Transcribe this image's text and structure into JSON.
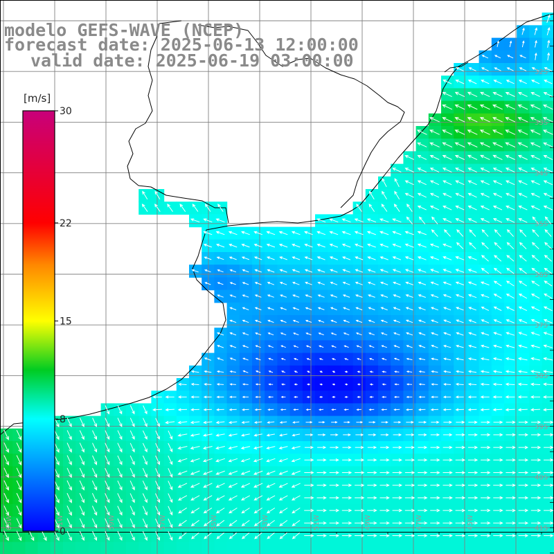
{
  "titles": {
    "model": "modelo GEFS-WAVE (NCEP)",
    "forecast": "forecast date: 2025-06-13 12:00:00",
    "valid": "valid date: 2025-06-19 03:00:00"
  },
  "colorbar": {
    "unit": "[m/s]",
    "ticks": [
      {
        "label": "30",
        "value": 30
      },
      {
        "label": "22",
        "value": 22
      },
      {
        "label": "15",
        "value": 15
      },
      {
        "label": "8",
        "value": 8
      },
      {
        "label": "0",
        "value": 0
      }
    ],
    "stops": [
      {
        "value": 0,
        "color": "#0000ff"
      },
      {
        "value": 8,
        "color": "#00ffff"
      },
      {
        "value": 11.5,
        "color": "#00cc22"
      },
      {
        "value": 15,
        "color": "#ffff00"
      },
      {
        "value": 19,
        "color": "#ff8800"
      },
      {
        "value": 22,
        "color": "#ff0000"
      },
      {
        "value": 30,
        "color": "#c8007a"
      }
    ]
  },
  "map": {
    "lon_range": [
      -64,
      -44
    ],
    "lat_range": [
      -41.8,
      -31.4
    ],
    "lat_labels": [
      "32S",
      "33S",
      "34S",
      "35S",
      "36S",
      "37S",
      "38S",
      "39S",
      "40S",
      "41S"
    ],
    "lon_labels": [
      "63W",
      "61W",
      "59W",
      "57W",
      "55W",
      "53W",
      "51W",
      "49W",
      "47W",
      "45W"
    ],
    "land_color": "#ffffff",
    "coast_color": "#000000",
    "grid_color": "#808080",
    "arrow_color": "#ffffff"
  }
}
